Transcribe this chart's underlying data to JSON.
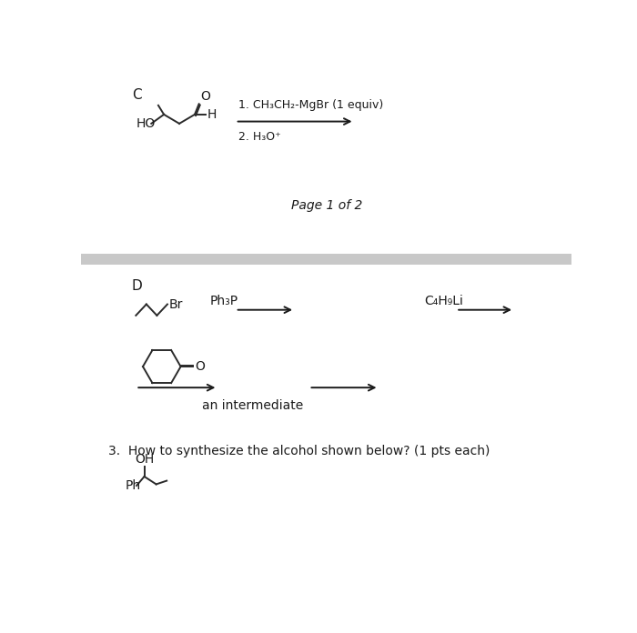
{
  "bg_color": "#ffffff",
  "gray_bar_color": "#c8c8c8",
  "label_C": "C",
  "label_D": "D",
  "page_text": "Page 1 of 2",
  "reaction1_line1": "1. CH₃CH₂-MgBr (1 equiv)",
  "reaction1_line2": "2. H₃O⁺",
  "label_Ph3P": "Ph₃P",
  "label_C4H9Li": "C₄H₉Li",
  "label_intermediate": "an intermediate",
  "label_question": "3.  How to synthesize the alcohol shown below? (1 pts each)",
  "text_color": "#1a1a1a",
  "bond_color": "#2a2a2a",
  "label_HO": "HO",
  "label_H": "H",
  "label_O": "O",
  "label_Br": "Br",
  "label_OH": "OH",
  "label_Ph": "Ph"
}
